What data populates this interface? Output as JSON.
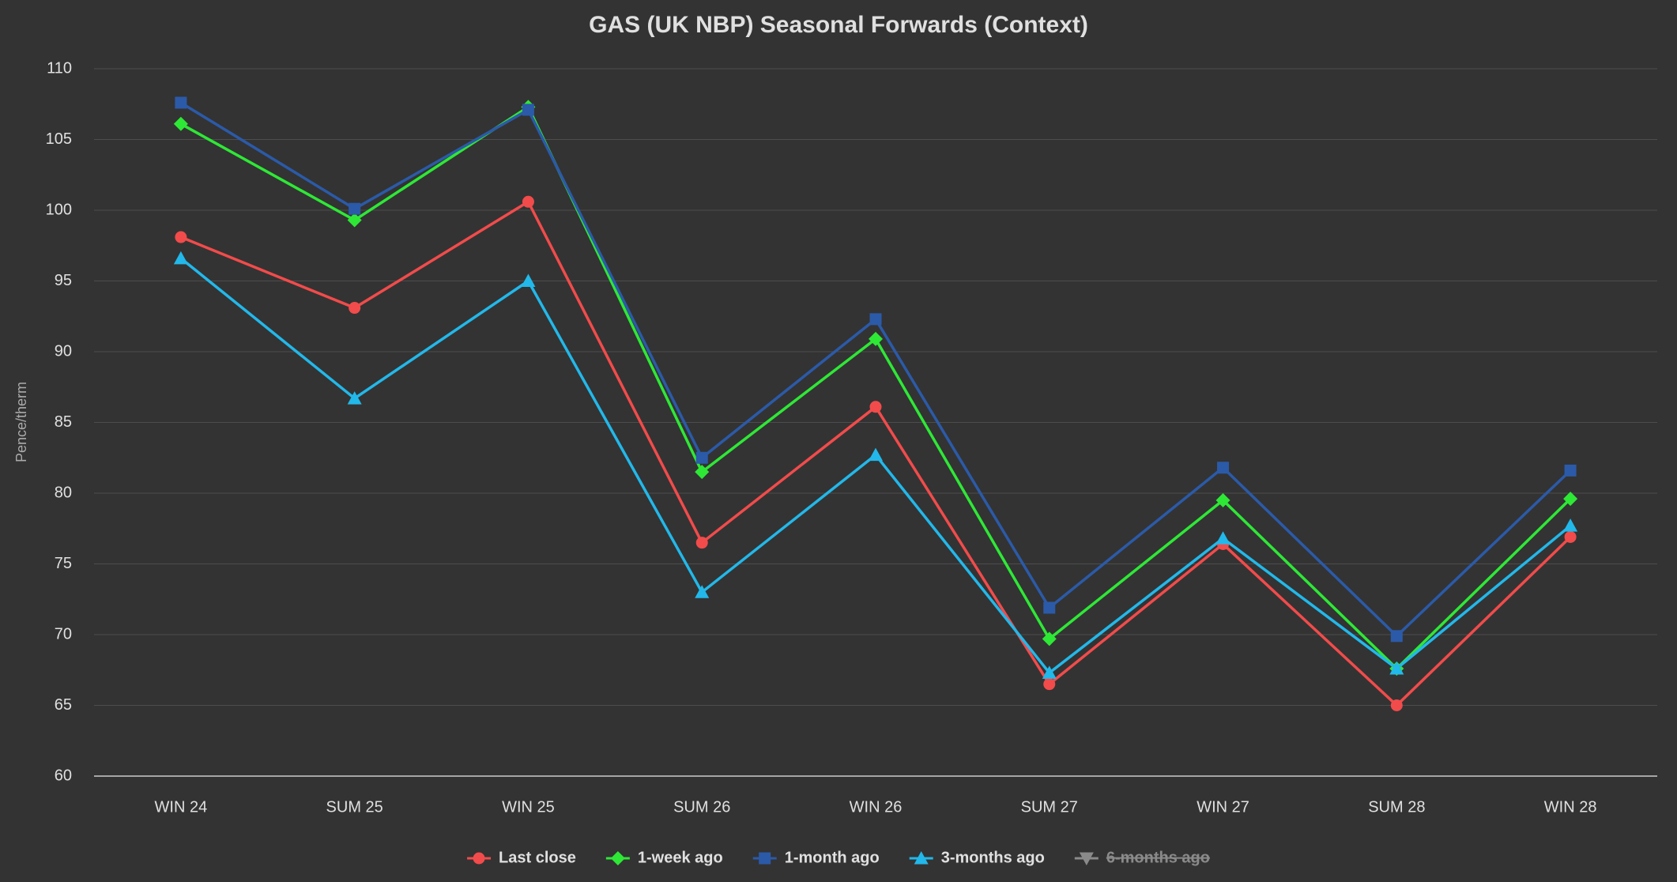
{
  "chart_data": {
    "type": "line",
    "title": "GAS (UK NBP) Seasonal Forwards (Context)",
    "y_label": "Pence/therm",
    "categories": [
      "WIN 24",
      "SUM 25",
      "WIN 25",
      "SUM 26",
      "WIN 26",
      "SUM 27",
      "WIN 27",
      "SUM 28",
      "WIN 28"
    ],
    "series": [
      {
        "name": "Last close",
        "color": "#f24b4b",
        "symbol": "circle",
        "values": [
          98.1,
          93.1,
          100.6,
          76.5,
          86.1,
          66.5,
          76.4,
          65.0,
          76.9
        ]
      },
      {
        "name": "1-week ago",
        "color": "#2ee836",
        "symbol": "diamond",
        "values": [
          106.1,
          99.3,
          107.3,
          81.5,
          90.9,
          69.7,
          79.5,
          67.6,
          79.6
        ]
      },
      {
        "name": "1-month ago",
        "color": "#2b5aa8",
        "symbol": "square",
        "values": [
          107.6,
          100.1,
          107.1,
          82.5,
          92.3,
          71.9,
          81.8,
          69.9,
          81.6
        ]
      },
      {
        "name": "3-months ago",
        "color": "#22b8ea",
        "symbol": "triangle",
        "values": [
          96.6,
          86.7,
          95.0,
          73.0,
          82.7,
          67.3,
          76.8,
          67.6,
          77.7
        ]
      },
      {
        "name": "6-months ago",
        "color": "#8a8a8a",
        "symbol": "triangle-down",
        "hidden": true,
        "values": [
          null,
          null,
          null,
          null,
          null,
          null,
          null,
          null,
          null
        ]
      }
    ],
    "ylim": [
      60,
      110
    ],
    "yticks": [
      60,
      65,
      70,
      75,
      80,
      85,
      90,
      95,
      100,
      105,
      110
    ],
    "grid": true,
    "legend": "bottom"
  }
}
